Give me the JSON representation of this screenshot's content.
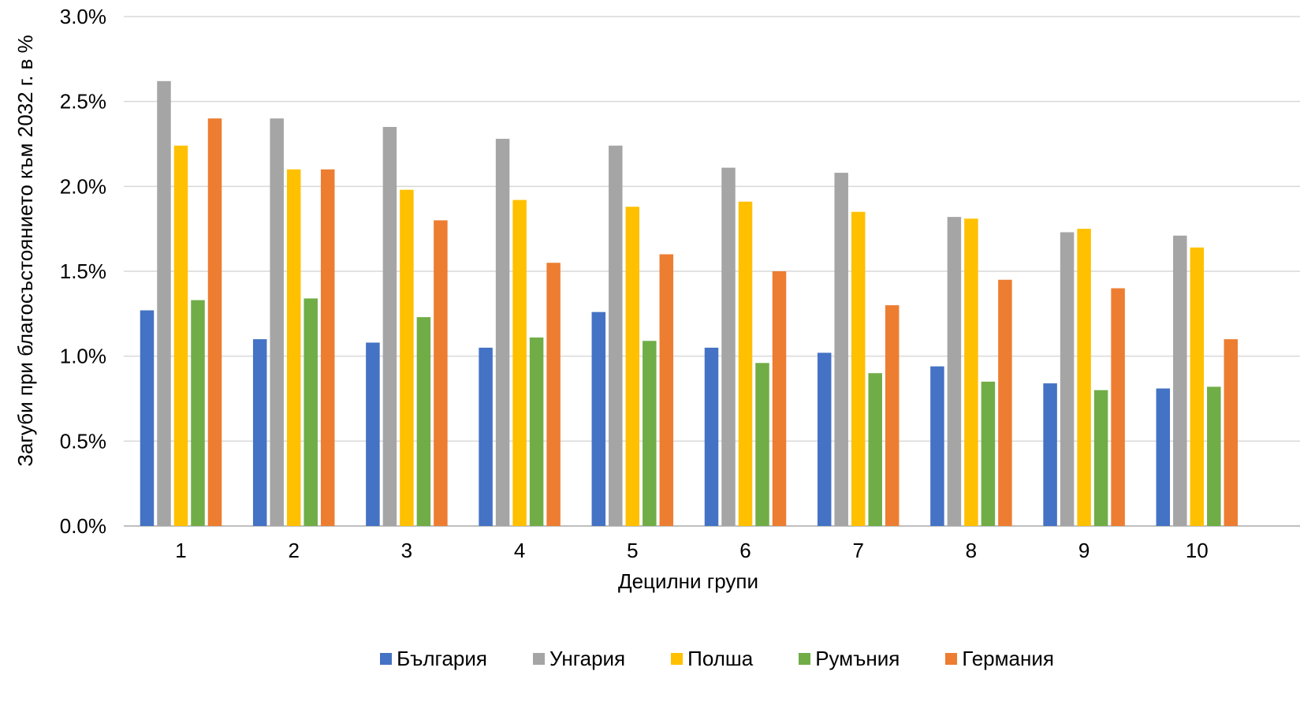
{
  "chart_data": {
    "type": "bar",
    "title": "",
    "xlabel": "Децилни групи",
    "ylabel": "Загуби при благосъстоянието към 2032 г. в %",
    "ylim": [
      0,
      3.0
    ],
    "yticks": [
      0.0,
      0.5,
      1.0,
      1.5,
      2.0,
      2.5,
      3.0
    ],
    "ytick_labels": [
      "0.0%",
      "0.5%",
      "1.0%",
      "1.5%",
      "2.0%",
      "2.5%",
      "3.0%"
    ],
    "grid": true,
    "legend_position": "bottom",
    "categories": [
      "1",
      "2",
      "3",
      "4",
      "5",
      "6",
      "7",
      "8",
      "9",
      "10"
    ],
    "series": [
      {
        "name": "България",
        "color": "#4472C4",
        "values": [
          1.27,
          1.1,
          1.08,
          1.05,
          1.26,
          1.05,
          1.02,
          0.94,
          0.84,
          0.81
        ]
      },
      {
        "name": "Унгария",
        "color": "#A5A5A5",
        "values": [
          2.62,
          2.4,
          2.35,
          2.28,
          2.24,
          2.11,
          2.08,
          1.82,
          1.73,
          1.71
        ]
      },
      {
        "name": "Полша",
        "color": "#FFC000",
        "values": [
          2.24,
          2.1,
          1.98,
          1.92,
          1.88,
          1.91,
          1.85,
          1.81,
          1.75,
          1.64
        ]
      },
      {
        "name": "Румъния",
        "color": "#70AD47",
        "values": [
          1.33,
          1.34,
          1.23,
          1.11,
          1.09,
          0.96,
          0.9,
          0.85,
          0.8,
          0.82
        ]
      },
      {
        "name": "Германия",
        "color": "#ED7D31",
        "values": [
          2.4,
          2.1,
          1.8,
          1.55,
          1.6,
          1.5,
          1.3,
          1.45,
          1.4,
          1.1
        ]
      }
    ]
  }
}
